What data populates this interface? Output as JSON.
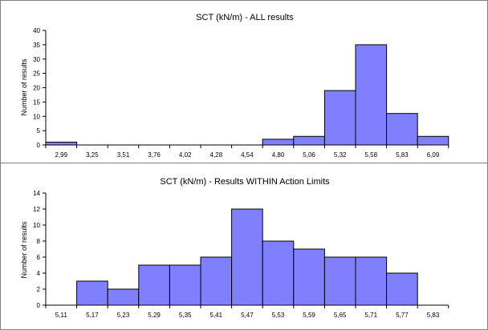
{
  "chart_data": [
    {
      "type": "bar",
      "title": "SCT (kN/m) - ALL results",
      "xlabel": "",
      "ylabel": "Number of results",
      "ylim": [
        0,
        40
      ],
      "yticks": [
        "0",
        "5",
        "10",
        "15",
        "20",
        "25",
        "30",
        "35",
        "40"
      ],
      "categories": [
        "2,99",
        "3,25",
        "3,51",
        "3,76",
        "4,02",
        "4,28",
        "4,54",
        "4,80",
        "5,06",
        "5,32",
        "5,58",
        "5,83",
        "6,09"
      ],
      "values": [
        1,
        0,
        0,
        0,
        0,
        0,
        0,
        2,
        3,
        19,
        35,
        11,
        3
      ],
      "grid": false,
      "bar_color": "#8080ff",
      "edge_color": "#000000"
    },
    {
      "type": "bar",
      "title": "SCT (kN/m) - Results WITHIN Action Limits",
      "xlabel": "",
      "ylabel": "Number of results",
      "ylim": [
        0,
        14
      ],
      "yticks": [
        "0",
        "2",
        "4",
        "6",
        "8",
        "10",
        "12",
        "14"
      ],
      "categories": [
        "5,11",
        "5,17",
        "5,23",
        "5,29",
        "5,35",
        "5,41",
        "5,47",
        "5,53",
        "5,59",
        "5,65",
        "5,71",
        "5,77",
        "5,83"
      ],
      "values": [
        0,
        3,
        2,
        5,
        5,
        6,
        12,
        8,
        7,
        6,
        6,
        4,
        0
      ],
      "grid": false,
      "bar_color": "#8080ff",
      "edge_color": "#000000"
    }
  ]
}
